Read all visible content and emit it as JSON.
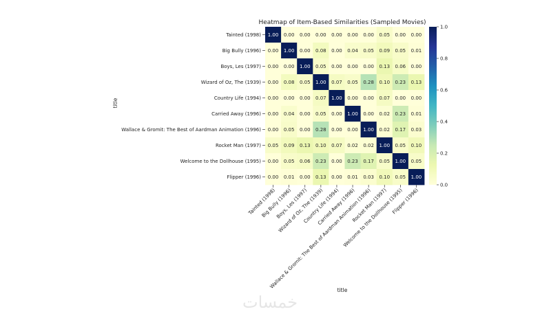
{
  "chart_data": {
    "type": "heatmap",
    "title": "Heatmap of Item-Based Similarities (Sampled Movies)",
    "xlabel": "title",
    "ylabel": "title",
    "rows": [
      "Tainted (1998)",
      "Big Bully (1996)",
      "Boys, Les (1997)",
      "Wizard of Oz, The (1939)",
      "Country Life (1994)",
      "Carried Away (1996)",
      "Wallace & Gromit: The Best of Aardman Animation (1996)",
      "Rocket Man (1997)",
      "Welcome to the Dollhouse (1995)",
      "Flipper (1996)"
    ],
    "columns": [
      "Tainted (1998)",
      "Big Bully (1996)",
      "Boys, Les (1997)",
      "Wizard of Oz, The (1939)",
      "Country Life (1994)",
      "Carried Away (1996)",
      "Wallace & Gromit: The Best of Aardman Animation (1996)",
      "Rocket Man (1997)",
      "Welcome to the Dollhouse (1995)",
      "Flipper (1996)"
    ],
    "values": [
      [
        1.0,
        0.0,
        0.0,
        0.0,
        0.0,
        0.0,
        0.0,
        0.05,
        0.0,
        0.0
      ],
      [
        0.0,
        1.0,
        0.0,
        0.08,
        0.0,
        0.04,
        0.05,
        0.09,
        0.05,
        0.01
      ],
      [
        0.0,
        0.0,
        1.0,
        0.05,
        0.0,
        0.0,
        0.0,
        0.13,
        0.06,
        0.0
      ],
      [
        0.0,
        0.08,
        0.05,
        1.0,
        0.07,
        0.05,
        0.28,
        0.1,
        0.23,
        0.13
      ],
      [
        0.0,
        0.0,
        0.0,
        0.07,
        1.0,
        0.0,
        0.0,
        0.07,
        0.0,
        0.0
      ],
      [
        0.0,
        0.04,
        0.0,
        0.05,
        0.0,
        1.0,
        0.0,
        0.02,
        0.23,
        0.01
      ],
      [
        0.0,
        0.05,
        0.0,
        0.28,
        0.0,
        0.0,
        1.0,
        0.02,
        0.17,
        0.03
      ],
      [
        0.05,
        0.09,
        0.13,
        0.1,
        0.07,
        0.02,
        0.02,
        1.0,
        0.05,
        0.1
      ],
      [
        0.0,
        0.05,
        0.06,
        0.23,
        0.0,
        0.23,
        0.17,
        0.05,
        1.0,
        0.05
      ],
      [
        0.0,
        0.01,
        0.0,
        0.13,
        0.0,
        0.01,
        0.03,
        0.1,
        0.05,
        1.0
      ]
    ],
    "value_format": "0.00",
    "colormap": "YlGnBu",
    "colorbar": {
      "range": [
        0.0,
        1.0
      ],
      "ticks": [
        "0.0",
        "0.2",
        "0.4",
        "0.6",
        "0.8",
        "1.0"
      ]
    }
  },
  "watermark": "خمسات"
}
